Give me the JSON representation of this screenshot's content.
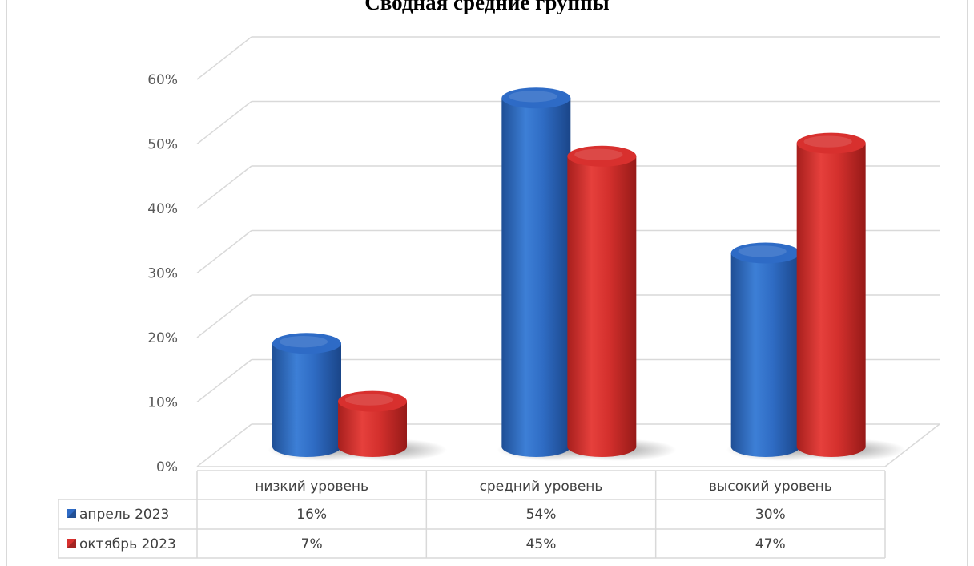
{
  "chart_data": {
    "type": "bar",
    "title": "Сводная средние группы",
    "categories": [
      "низкий уровень",
      "средний уровень",
      "высокий уровень"
    ],
    "series": [
      {
        "name": "апрель 2023",
        "values": [
          16,
          54,
          30
        ],
        "labels": [
          "16%",
          "54%",
          "30%"
        ],
        "color": "#2e6bc6"
      },
      {
        "name": "октябрь 2023",
        "values": [
          7,
          45,
          47
        ],
        "labels": [
          "7%",
          "45%",
          "47%"
        ],
        "color": "#d8302e"
      }
    ],
    "yticks": [
      "0%",
      "10%",
      "20%",
      "30%",
      "40%",
      "50%",
      "60%"
    ],
    "ylim": [
      0,
      60
    ],
    "grid": true,
    "legend": "data-table",
    "xlabel": "",
    "ylabel": ""
  }
}
